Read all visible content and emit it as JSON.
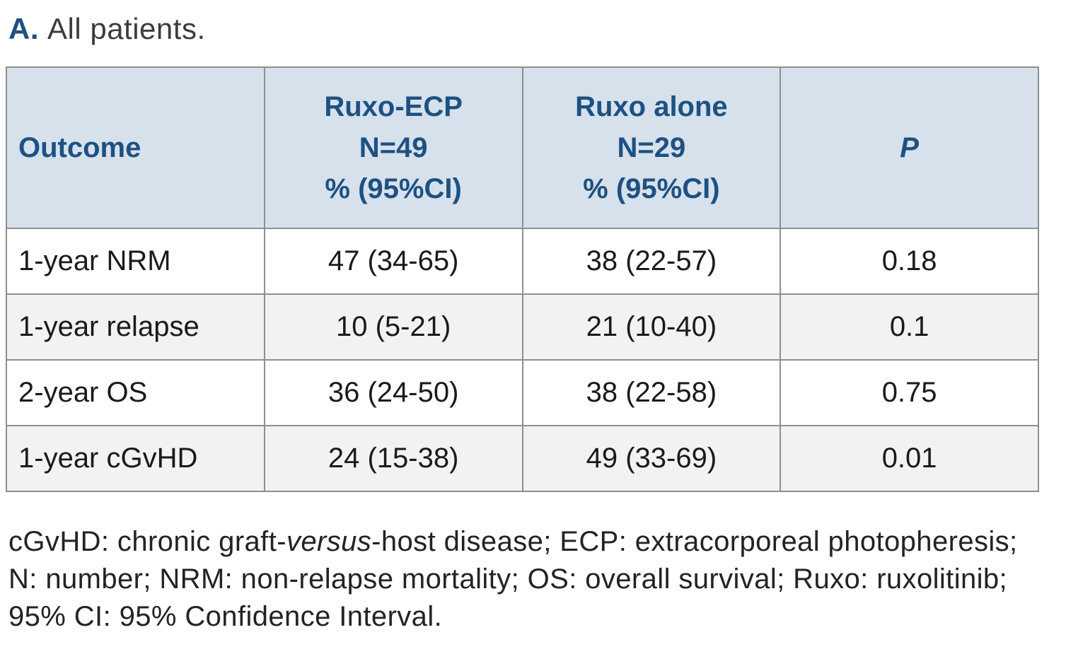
{
  "panel": {
    "label": "A.",
    "title": "All patients."
  },
  "table": {
    "headers": {
      "outcome": "Outcome",
      "ruxo_ecp": [
        "Ruxo-ECP",
        "N=49",
        "% (95%CI)"
      ],
      "ruxo_alone": [
        "Ruxo alone",
        "N=29",
        "% (95%CI)"
      ],
      "p": "P"
    },
    "rows": [
      {
        "outcome": "1-year NRM",
        "ruxo_ecp": "47 (34-65)",
        "ruxo_alone": "38 (22-57)",
        "p": "0.18"
      },
      {
        "outcome": "1-year relapse",
        "ruxo_ecp": "10 (5-21)",
        "ruxo_alone": "21 (10-40)",
        "p": "0.1"
      },
      {
        "outcome": "2-year OS",
        "ruxo_ecp": "36 (24-50)",
        "ruxo_alone": "38 (22-58)",
        "p": "0.75"
      },
      {
        "outcome": "1-year cGvHD",
        "ruxo_ecp": "24 (15-38)",
        "ruxo_alone": "49 (33-69)",
        "p": "0.01"
      }
    ]
  },
  "footnote": {
    "part1": "cGvHD: chronic graft-",
    "italic": "versus",
    "part2": "-host disease; ECP: extracorporeal photopheresis; N: number; NRM: non-relapse mortality; OS: overall survival; Ruxo: ruxolitinib; 95% CI: 95% Confidence Interval."
  },
  "colors": {
    "header_bg": "#d7e1eb",
    "header_text": "#1d5183",
    "row_alt_bg": "#f2f2f2",
    "border": "#8f8f8f",
    "body_text": "#1a1a1a"
  },
  "chart_data": {
    "type": "table",
    "title": "A. All patients.",
    "columns": [
      "Outcome",
      "Ruxo-ECP N=49 % (95%CI)",
      "Ruxo alone N=29 % (95%CI)",
      "P"
    ],
    "rows": [
      [
        "1-year NRM",
        "47 (34-65)",
        "38 (22-57)",
        "0.18"
      ],
      [
        "1-year relapse",
        "10 (5-21)",
        "21 (10-40)",
        "0.1"
      ],
      [
        "2-year OS",
        "36 (24-50)",
        "38 (22-58)",
        "0.75"
      ],
      [
        "1-year cGvHD",
        "24 (15-38)",
        "49 (33-69)",
        "0.01"
      ]
    ]
  }
}
